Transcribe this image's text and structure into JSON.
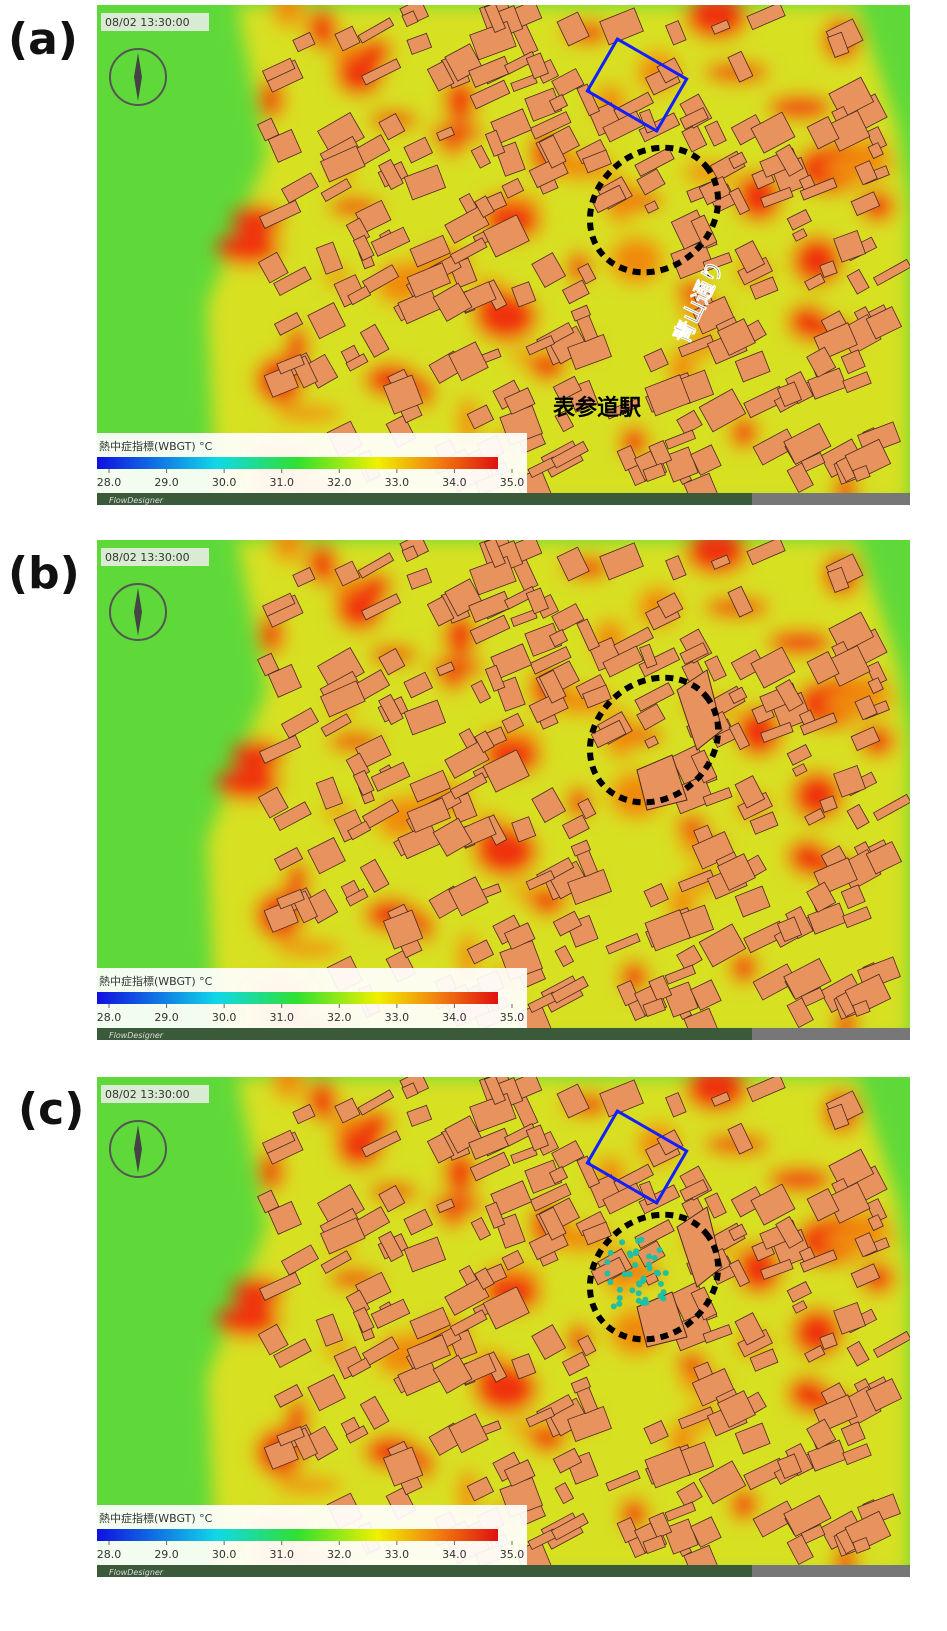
{
  "panels": [
    {
      "label": "(a)",
      "timestamp": "08/02 13:30:00",
      "software": "FlowDesigner",
      "legend": {
        "title": "熱中症指標(WBGT) °C",
        "ticks": [
          {
            "value": 28,
            "label": "28.0"
          },
          {
            "value": 29,
            "label": "29.0"
          },
          {
            "value": 30,
            "label": "30.0"
          },
          {
            "value": 31,
            "label": "31.0"
          },
          {
            "value": 32,
            "label": "32.0"
          },
          {
            "value": 33,
            "label": "33.0"
          },
          {
            "value": 34,
            "label": "34.0"
          },
          {
            "value": 35,
            "label": "35.0"
          }
        ]
      },
      "annotations": {
        "street": "青山通り",
        "station": "表参道駅"
      }
    },
    {
      "label": "(b)",
      "timestamp": "08/02 13:30:00",
      "software": "FlowDesigner",
      "legend": {
        "title": "熱中症指標(WBGT) °C",
        "ticks": [
          {
            "value": 28,
            "label": "28.0"
          },
          {
            "value": 29,
            "label": "29.0"
          },
          {
            "value": 30,
            "label": "30.0"
          },
          {
            "value": 31,
            "label": "31.0"
          },
          {
            "value": 32,
            "label": "32.0"
          },
          {
            "value": 33,
            "label": "33.0"
          },
          {
            "value": 34,
            "label": "34.0"
          },
          {
            "value": 35,
            "label": "35.0"
          }
        ]
      }
    },
    {
      "label": "(c)",
      "timestamp": "08/02 13:30:00",
      "software": "FlowDesigner",
      "legend": {
        "title": "熱中症指標(WBGT) °C",
        "ticks": [
          {
            "value": 28,
            "label": "28.0"
          },
          {
            "value": 29,
            "label": "29.0"
          },
          {
            "value": 30,
            "label": "30.0"
          },
          {
            "value": 31,
            "label": "31.0"
          },
          {
            "value": 32,
            "label": "32.0"
          },
          {
            "value": 33,
            "label": "33.0"
          },
          {
            "value": 34,
            "label": "34.0"
          },
          {
            "value": 35,
            "label": "35.0"
          }
        ]
      }
    }
  ]
}
